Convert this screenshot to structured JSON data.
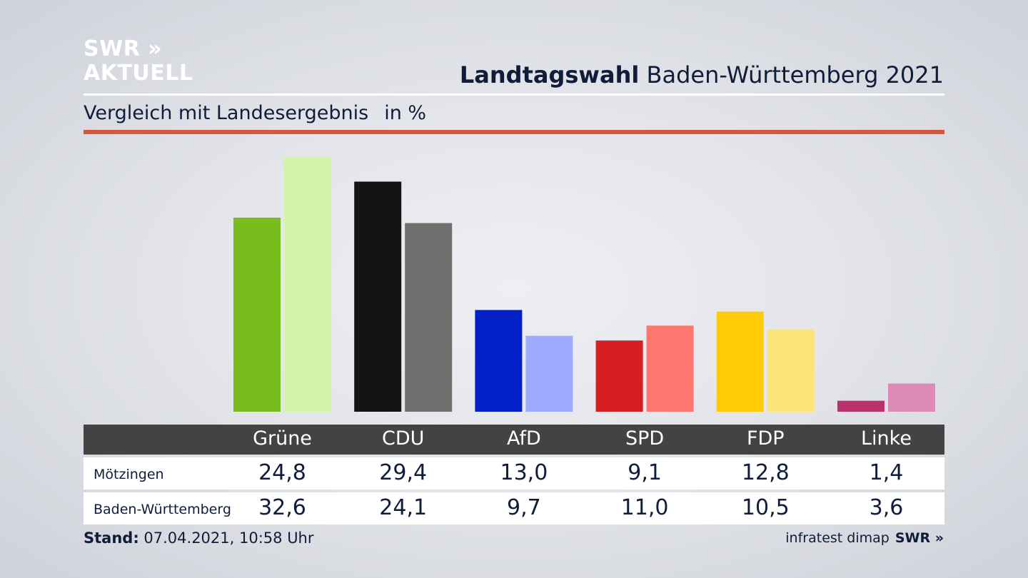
{
  "brand": {
    "logo_line1": "SWR »",
    "logo_line2": "AKTUELL"
  },
  "header": {
    "title_bold": "Landtagswahl",
    "title_rest": "Baden-Württemberg 2021",
    "subtitle": "Vergleich mit Landesergebnis",
    "unit": "in %"
  },
  "colors": {
    "red_rule": "#d4573e",
    "table_header": "#434343"
  },
  "chart_data": {
    "type": "bar",
    "title": "Landtagswahl Baden-Württemberg 2021 – Vergleich mit Landesergebnis",
    "ylabel": "in %",
    "ylim": [
      0,
      33
    ],
    "categories": [
      "Grüne",
      "CDU",
      "AfD",
      "SPD",
      "FDP",
      "Linke"
    ],
    "series": [
      {
        "name": "Mötzingen",
        "values": [
          24.8,
          29.4,
          13.0,
          9.1,
          12.8,
          1.4
        ],
        "labels": [
          "24,8",
          "29,4",
          "13,0",
          "9,1",
          "12,8",
          "1,4"
        ],
        "colors": [
          "#78bd1e",
          "#141414",
          "#0220c8",
          "#d81e22",
          "#ffcb07",
          "#b8336e"
        ]
      },
      {
        "name": "Baden-Württemberg",
        "values": [
          32.6,
          24.1,
          9.7,
          11.0,
          10.5,
          3.6
        ],
        "labels": [
          "32,6",
          "24,1",
          "9,7",
          "11,0",
          "10,5",
          "3,6"
        ],
        "colors": [
          "#d4f5a9",
          "#706f6d",
          "#9dabff",
          "#ff766e",
          "#fee37a",
          "#de8ab8"
        ]
      }
    ]
  },
  "footer": {
    "stand_label": "Stand:",
    "stand_value": "07.04.2021, 10:58 Uhr",
    "source": "infratest dimap",
    "source_brand": "SWR »"
  }
}
